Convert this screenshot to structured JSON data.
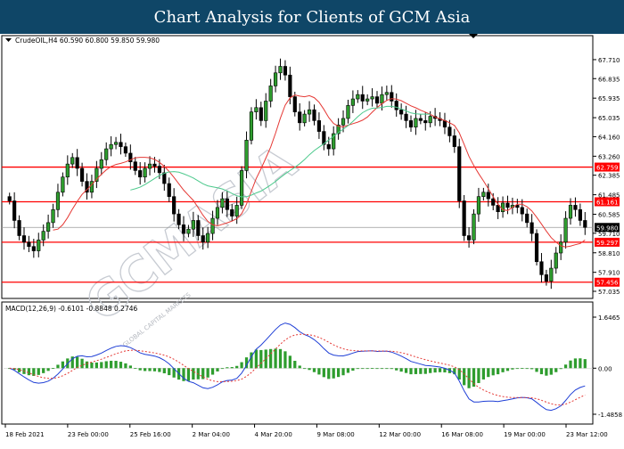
{
  "banner": {
    "title": "Chart Analysis for Clients of GCM Asia"
  },
  "watermark": {
    "text": "GCMASIA",
    "sub_text": "GLOBAL CAPITAL MARKETS"
  },
  "chart_data": [
    {
      "type": "candlestick",
      "header": "CrudeOIL,H4  60.590 60.800 59.850 59.980",
      "symbol": "CrudeOIL,H4",
      "ohlc": {
        "open": 60.59,
        "high": 60.8,
        "low": 59.85,
        "close": 59.98
      },
      "ylim": [
        57.035,
        68.2
      ],
      "y_ticks": [
        "67.710",
        "66.835",
        "65.935",
        "65.035",
        "64.160",
        "63.260",
        "62.385",
        "61.485",
        "60.585",
        "59.710",
        "58.810",
        "57.910",
        "57.035"
      ],
      "horizontal_lines": [
        {
          "label": "62.759",
          "value": 62.759,
          "color": "#ff0000"
        },
        {
          "label": "61.161",
          "value": 61.161,
          "color": "#ff0000"
        },
        {
          "label": "59.297",
          "value": 59.297,
          "color": "#ff0000"
        },
        {
          "label": "57.456",
          "value": 57.456,
          "color": "#ff0000"
        }
      ],
      "current_price": {
        "label": "59.980",
        "value": 59.98
      },
      "x_labels": [
        "18 Feb 2021",
        "23 Feb 00:00",
        "25 Feb 16:00",
        "2 Mar 04:00",
        "4 Mar 20:00",
        "9 Mar 08:00",
        "12 Mar 00:00",
        "16 Mar 08:00",
        "19 Mar 00:00",
        "23 Mar 12:00"
      ],
      "series": [
        {
          "role": "ma-fast",
          "color": "#e53935"
        },
        {
          "role": "ma-slow",
          "color": "#4cc98c"
        }
      ],
      "closes": [
        61.2,
        60.3,
        59.6,
        59.3,
        59.1,
        58.9,
        59.4,
        59.8,
        60.2,
        60.8,
        61.6,
        62.3,
        62.9,
        63.2,
        62.7,
        62.1,
        61.6,
        62.1,
        62.7,
        63.1,
        63.6,
        63.8,
        63.9,
        63.7,
        63.4,
        63.0,
        62.6,
        62.3,
        62.7,
        62.9,
        62.8,
        62.5,
        62.0,
        61.4,
        60.6,
        60.1,
        59.7,
        59.9,
        60.3,
        59.6,
        59.3,
        59.7,
        60.4,
        60.9,
        61.3,
        60.8,
        60.5,
        61.0,
        62.6,
        64.0,
        65.3,
        65.5,
        64.9,
        65.8,
        66.5,
        67.1,
        67.4,
        67.0,
        66.0,
        65.3,
        64.8,
        65.2,
        65.4,
        64.9,
        64.4,
        63.8,
        63.6,
        64.3,
        64.7,
        65.0,
        65.6,
        65.9,
        66.1,
        65.8,
        65.9,
        66.0,
        65.7,
        66.1,
        66.2,
        65.8,
        65.4,
        65.2,
        64.9,
        64.6,
        65.0,
        64.9,
        64.8,
        65.1,
        65.0,
        64.9,
        64.6,
        64.2,
        63.7,
        61.2,
        59.6,
        59.4,
        60.6,
        61.4,
        61.6,
        61.3,
        61.0,
        60.7,
        61.1,
        60.9,
        61.0,
        60.9,
        60.6,
        60.2,
        59.7,
        58.4,
        57.8,
        57.5,
        58.1,
        58.8,
        59.3,
        60.4,
        61.0,
        60.8,
        60.3,
        59.98
      ]
    },
    {
      "type": "macd",
      "header": "MACD(12,26,9)  -0.6101 -0.8848 0.2746",
      "params": "MACD(12,26,9)",
      "values": {
        "macd": -0.6101,
        "signal": -0.8848,
        "histogram": 0.2746
      },
      "ylim": [
        -1.4858,
        1.6465
      ],
      "y_ticks": [
        "1.6465",
        "0.00",
        "-1.4858"
      ],
      "series": [
        {
          "role": "macd-line",
          "color": "#1f3fd6"
        },
        {
          "role": "signal-line",
          "color": "#e53935"
        },
        {
          "role": "histogram",
          "color": "#2e9d2e"
        }
      ]
    }
  ]
}
